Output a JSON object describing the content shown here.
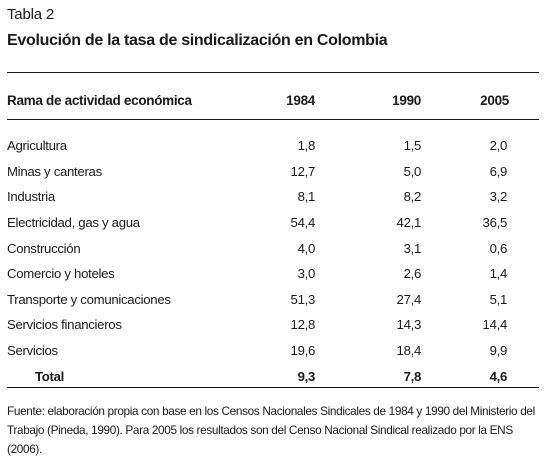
{
  "table_label": "Tabla 2",
  "title": "Evolución de la tasa de sindicalización en Colombia",
  "headers": {
    "category": "Rama de actividad económica",
    "years": [
      "1984",
      "1990",
      "2005"
    ]
  },
  "rows": [
    {
      "name": "Agricultura",
      "values": [
        "1,8",
        "1,5",
        "2,0"
      ]
    },
    {
      "name": "Minas y canteras",
      "values": [
        "12,7",
        "5,0",
        "6,9"
      ]
    },
    {
      "name": "Industria",
      "values": [
        "8,1",
        "8,2",
        "3,2"
      ]
    },
    {
      "name": "Electricidad, gas y agua",
      "values": [
        "54,4",
        "42,1",
        "36,5"
      ]
    },
    {
      "name": "Construcción",
      "values": [
        "4,0",
        "3,1",
        "0,6"
      ]
    },
    {
      "name": "Comercio y hoteles",
      "values": [
        "3,0",
        "2,6",
        "1,4"
      ]
    },
    {
      "name": "Transporte y comunicaciones",
      "values": [
        "51,3",
        "27,4",
        "5,1"
      ]
    },
    {
      "name": "Servicios financieros",
      "values": [
        "12,8",
        "14,3",
        "14,4"
      ]
    },
    {
      "name": "Servicios",
      "values": [
        "19,6",
        "18,4",
        "9,9"
      ]
    }
  ],
  "total": {
    "name": "Total",
    "values": [
      "9,3",
      "7,8",
      "4,6"
    ]
  },
  "footnote": {
    "line1": "Fuente: elaboración propia con base en los Censos Nacionales Sindicales de 1984 y 1990 del Ministerio del",
    "line2": "Trabajo (Pineda, 1990). Para 2005 los resultados son del Censo Nacional Sindical realizado por la ENS (2006)."
  }
}
